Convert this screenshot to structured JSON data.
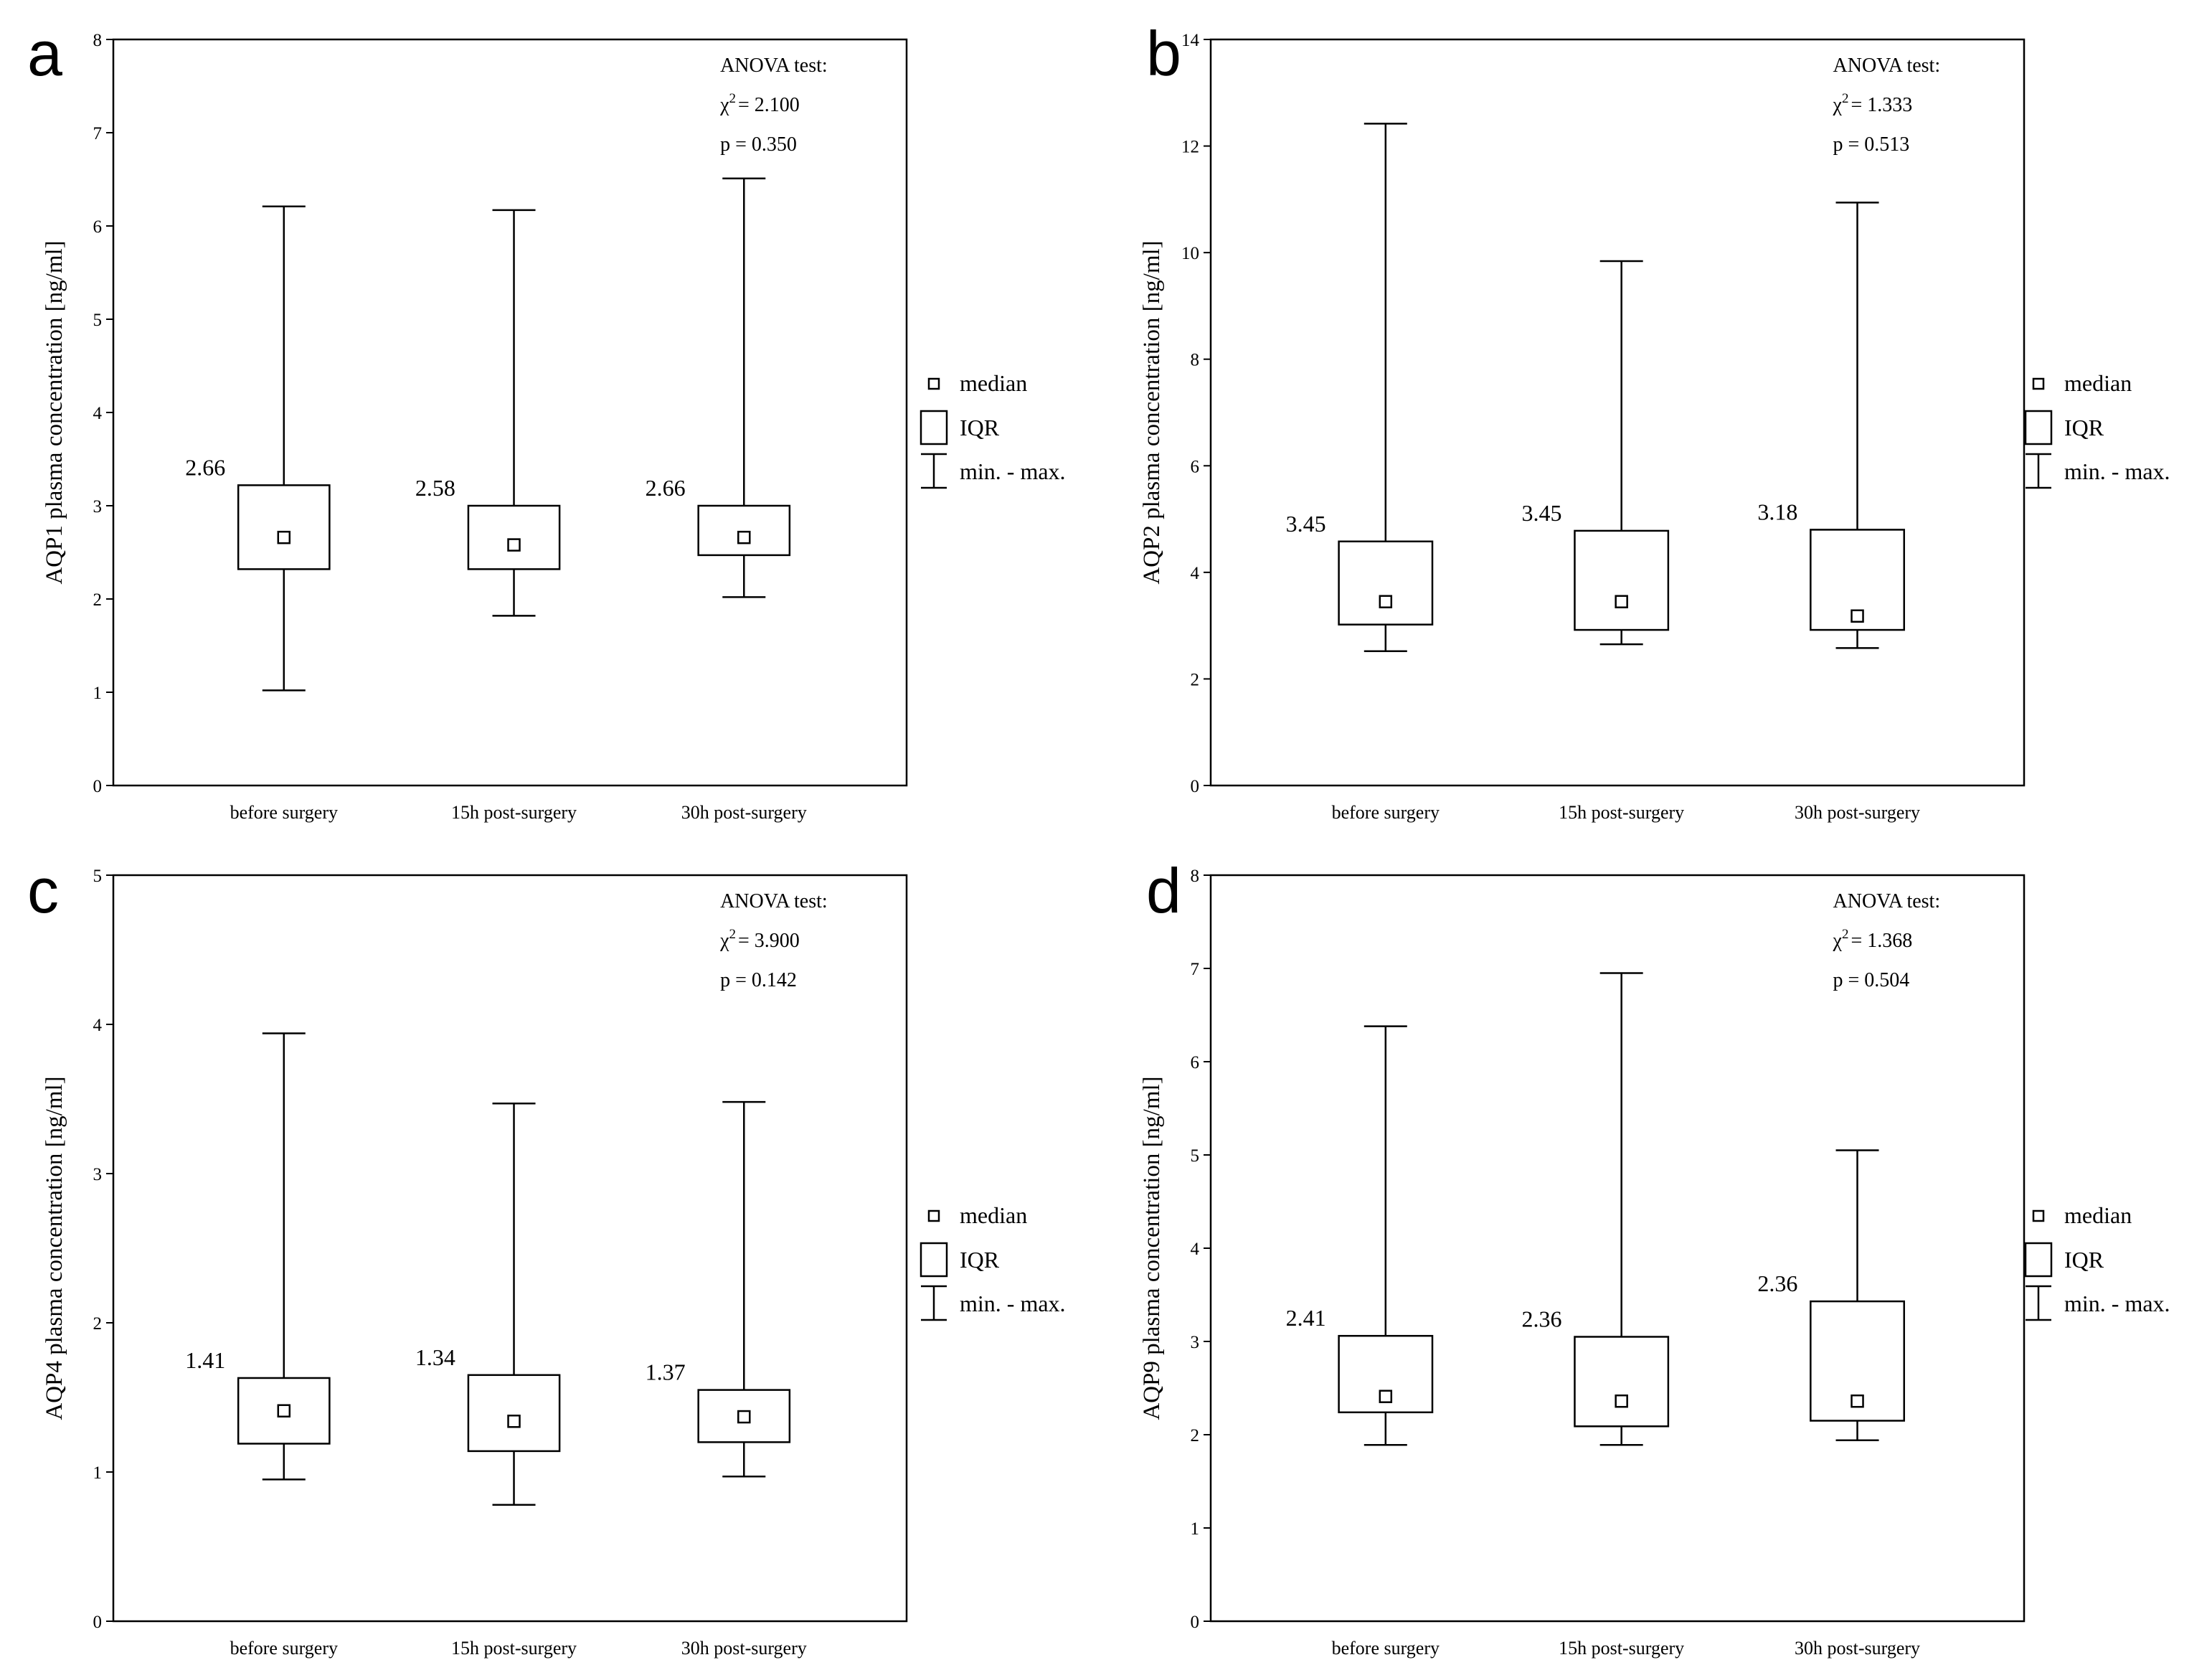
{
  "figure": {
    "colors": {
      "ink": "#000000",
      "background": "#ffffff"
    }
  },
  "chart_data": [
    {
      "panel_label": "a",
      "type": "boxplot",
      "ylabel": "AQP1 plasma concentration [ng/ml]",
      "ylim": [
        0,
        8
      ],
      "yticks": [
        "0",
        "1",
        "2",
        "3",
        "4",
        "5",
        "6",
        "7",
        "8"
      ],
      "categories": [
        "before surgery",
        "15h post-surgery",
        "30h post-surgery"
      ],
      "median": [
        2.66,
        2.58,
        2.66
      ],
      "median_labels": [
        "2.66",
        "2.58",
        "2.66"
      ],
      "q1": [
        2.32,
        2.32,
        2.47
      ],
      "q3": [
        3.22,
        3.0,
        3.0
      ],
      "min": [
        1.02,
        1.82,
        2.02
      ],
      "max": [
        6.21,
        6.17,
        6.51
      ],
      "stats": {
        "test": "ANOVA test:",
        "chi_symbol": "χ",
        "chi_sup": "2",
        "chi_value": "= 2.100",
        "p_text": "p = 0.350"
      }
    },
    {
      "panel_label": "b",
      "type": "boxplot",
      "ylabel": "AQP2 plasma concentration [ng/ml]",
      "ylim": [
        0,
        14
      ],
      "yticks": [
        "0",
        "2",
        "4",
        "6",
        "8",
        "10",
        "12",
        "14"
      ],
      "categories": [
        "before surgery",
        "15h post-surgery",
        "30h post-surgery"
      ],
      "median": [
        3.45,
        3.45,
        3.18
      ],
      "median_labels": [
        "3.45",
        "3.45",
        "3.18"
      ],
      "q1": [
        3.02,
        2.92,
        2.92
      ],
      "q3": [
        4.58,
        4.78,
        4.8
      ],
      "min": [
        2.52,
        2.65,
        2.58
      ],
      "max": [
        12.42,
        9.84,
        10.94
      ],
      "stats": {
        "test": "ANOVA test:",
        "chi_symbol": "χ",
        "chi_sup": "2",
        "chi_value": "= 1.333",
        "p_text": "p = 0.513"
      }
    },
    {
      "panel_label": "c",
      "type": "boxplot",
      "ylabel": "AQP4 plasma concentration [ng/ml]",
      "ylim": [
        0,
        5
      ],
      "yticks": [
        "0",
        "1",
        "2",
        "3",
        "4",
        "5"
      ],
      "categories": [
        "before surgery",
        "15h post-surgery",
        "30h post-surgery"
      ],
      "median": [
        1.41,
        1.34,
        1.37
      ],
      "median_labels": [
        "1.41",
        "1.34",
        "1.37"
      ],
      "q1": [
        1.19,
        1.14,
        1.2
      ],
      "q3": [
        1.63,
        1.65,
        1.55
      ],
      "min": [
        0.95,
        0.78,
        0.97
      ],
      "max": [
        3.94,
        3.47,
        3.48
      ],
      "stats": {
        "test": "ANOVA test:",
        "chi_symbol": "χ",
        "chi_sup": "2",
        "chi_value": "= 3.900",
        "p_text": "p = 0.142"
      }
    },
    {
      "panel_label": "d",
      "type": "boxplot",
      "ylabel": "AQP9 plasma concentration [ng/ml]",
      "ylim": [
        0,
        8
      ],
      "yticks": [
        "0",
        "1",
        "2",
        "3",
        "4",
        "5",
        "6",
        "7",
        "8"
      ],
      "categories": [
        "before surgery",
        "15h post-surgery",
        "30h post-surgery"
      ],
      "median": [
        2.41,
        2.36,
        2.36
      ],
      "median_labels": [
        "2.41",
        "2.36",
        "2.36"
      ],
      "q1": [
        2.24,
        2.09,
        2.15
      ],
      "q3": [
        3.06,
        3.05,
        3.43
      ],
      "min": [
        1.89,
        1.89,
        1.94
      ],
      "max": [
        6.38,
        6.95,
        5.05
      ],
      "stats": {
        "test": "ANOVA test:",
        "chi_symbol": "χ",
        "chi_sup": "2",
        "chi_value": "= 1.368",
        "p_text": "p = 0.504"
      }
    }
  ],
  "legend": {
    "median": "median",
    "iqr": "IQR",
    "range": "min. - max."
  }
}
